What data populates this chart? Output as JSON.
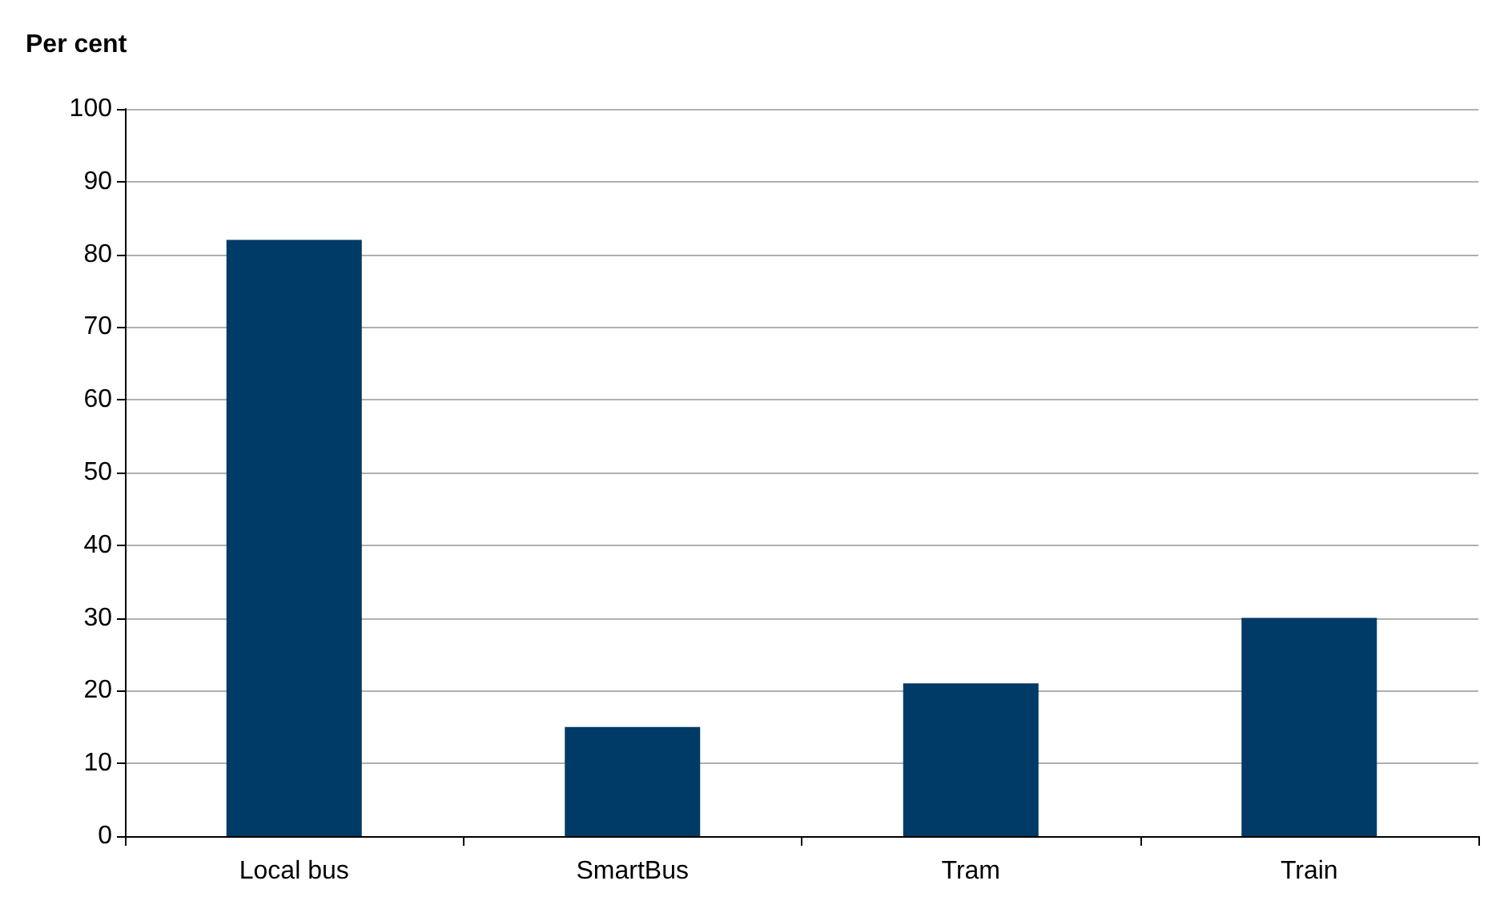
{
  "chart_data": {
    "type": "bar",
    "ylabel": "Per cent",
    "categories": [
      "Local bus",
      "SmartBus",
      "Tram",
      "Train"
    ],
    "values": [
      82,
      15,
      21,
      30
    ],
    "color": "#003a66",
    "ylim": [
      0,
      100
    ],
    "yticks": [
      0,
      10,
      20,
      30,
      40,
      50,
      60,
      70,
      80,
      90,
      100
    ],
    "grid": "y"
  }
}
